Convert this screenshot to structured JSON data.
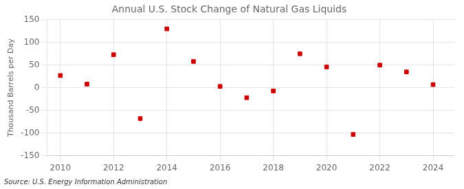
{
  "chart_data": {
    "type": "scatter",
    "title": "Annual U.S. Stock Change of Natural Gas Liquids",
    "ylabel": "Thousand Barrels per Day",
    "annotations": [
      "Source: U.S. Energy Information Administration"
    ],
    "x": [
      2010,
      2011,
      2012,
      2013,
      2014,
      2015,
      2016,
      2017,
      2018,
      2019,
      2020,
      2021,
      2022,
      2023,
      2024
    ],
    "values": [
      27,
      8,
      73,
      -68,
      130,
      58,
      3,
      -22,
      -7,
      75,
      46,
      -103,
      50,
      35,
      7
    ],
    "color": "#cc0000",
    "marker": "square",
    "xlim": [
      2009.5,
      2024.8
    ],
    "ylim": [
      -150,
      150
    ],
    "xticks": [
      2010,
      2012,
      2014,
      2016,
      2018,
      2020,
      2022,
      2024
    ],
    "yticks": [
      -150,
      -100,
      -50,
      0,
      50,
      100,
      150
    ],
    "grid": true
  }
}
